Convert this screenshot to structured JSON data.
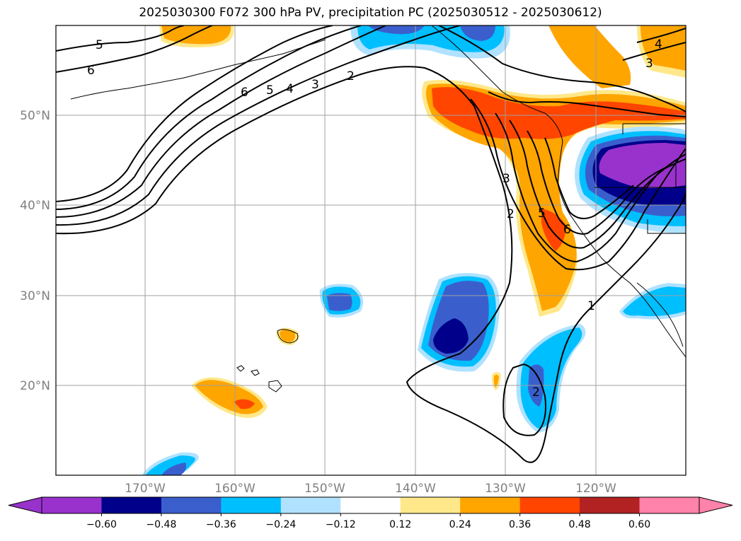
{
  "title": "2025030300 F072 300 hPa PV, precipitation PC (2025030512 - 2025030612)",
  "map": {
    "lat_labels": [
      "50°N",
      "40°N",
      "30°N",
      "20°N"
    ],
    "lon_labels": [
      "170°W",
      "160°W",
      "150°W",
      "140°W",
      "130°W",
      "120°W"
    ],
    "gridlines": true
  },
  "pv_contour_labels": [
    "5",
    "6",
    "6",
    "5",
    "4",
    "3",
    "2",
    "3",
    "4",
    "3",
    "2",
    "5",
    "6",
    "1",
    "2"
  ],
  "colorbar": {
    "tick_labels": [
      "−0.60",
      "−0.48",
      "−0.36",
      "−0.24",
      "−0.12",
      "0.12",
      "0.24",
      "0.36",
      "0.48",
      "0.60"
    ],
    "colors": [
      "#9932cc",
      "#00008b",
      "#3a5fcd",
      "#00bfff",
      "#b0e2ff",
      "#ffffff",
      "#ffe88a",
      "#ffa500",
      "#ff4500",
      "#b22222",
      "#ff82ab"
    ],
    "extend": "both"
  },
  "colors": {
    "purple": "#9932cc",
    "navy": "#00008b",
    "royal_blue": "#3a5fcd",
    "deep_sky": "#00bfff",
    "light_blue": "#b0e2ff",
    "light_yellow": "#ffe88a",
    "orange": "#ffa500",
    "orange_red": "#ff4500",
    "firebrick": "#b22222",
    "pink": "#ff82ab"
  }
}
